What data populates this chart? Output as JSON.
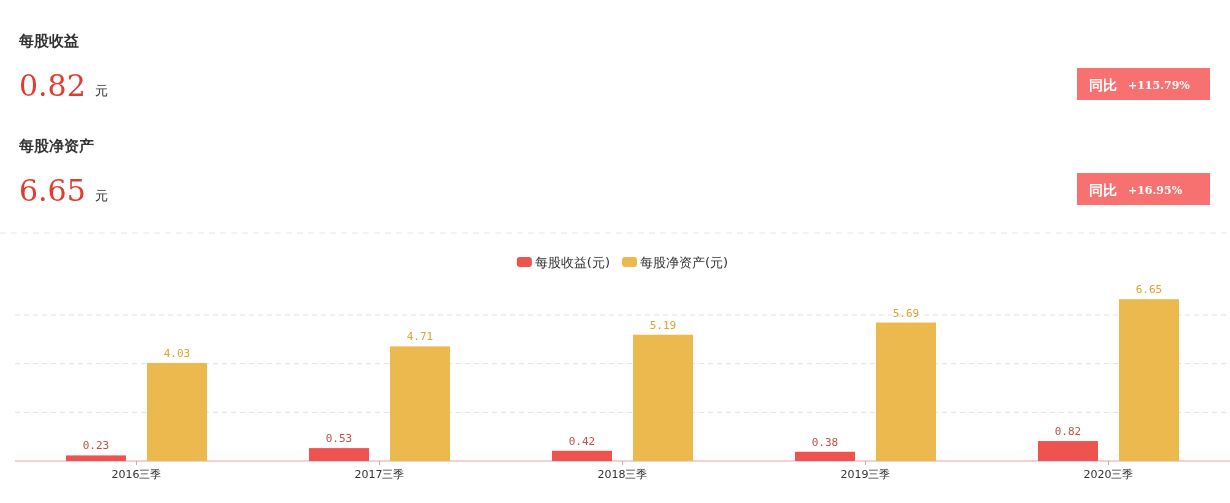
{
  "chart_data": [
    {
      "type": "other",
      "annotations": [
        "每股收益",
        "0.82",
        "元",
        "同比",
        "+115.79%",
        "每股净资产",
        "6.65",
        "元",
        "同比",
        "+16.95%"
      ]
    },
    {
      "type": "bar",
      "categories": [
        "2016三季",
        "2017三季",
        "2018三季",
        "2019三季",
        "2020三季"
      ],
      "series": [
        {
          "name": "每股收益(元)",
          "color": "#ee5350",
          "values": [
            0.23,
            0.53,
            0.42,
            0.38,
            0.82
          ]
        },
        {
          "name": "每股净资产(元)",
          "color": "#ecb94e",
          "values": [
            4.03,
            4.71,
            5.19,
            5.69,
            6.65
          ]
        }
      ],
      "yticks": [
        {
          "value": 0,
          "label": null
        },
        {
          "value": 2,
          "label": null
        },
        {
          "value": 4,
          "label": null
        },
        {
          "value": 6,
          "label": null
        }
      ],
      "grid": "y",
      "tick_labels": "x",
      "legend": "top",
      "data_labels": true
    }
  ]
}
